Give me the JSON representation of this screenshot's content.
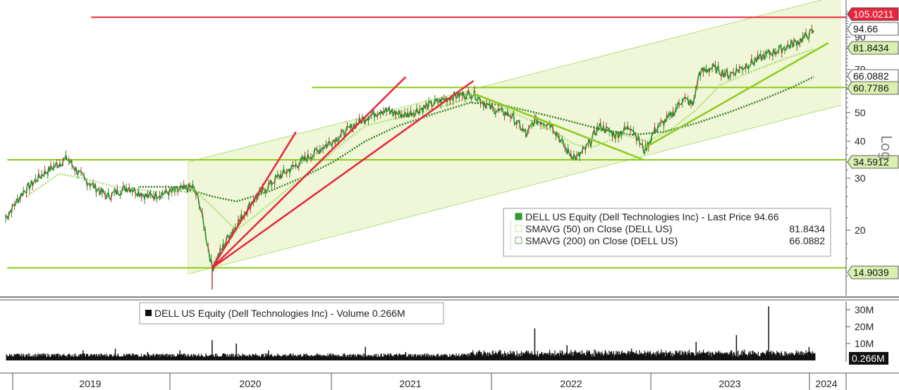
{
  "chart_data": [
    {
      "type": "line",
      "scale": "log",
      "scale_label": "Log",
      "ylim": [
        12,
        115
      ],
      "y_ticks": [
        20,
        30,
        40,
        50,
        60,
        70,
        90
      ],
      "x_labels": [
        "2019",
        "2020",
        "2021",
        "2022",
        "2023",
        "2024"
      ],
      "series": [
        {
          "name": "DELL US Equity (Dell Technologies Inc) - Last Price",
          "last": "94.66",
          "points": [
            [
              2018.92,
              22
            ],
            [
              2019.03,
              27
            ],
            [
              2019.15,
              31
            ],
            [
              2019.3,
              35
            ],
            [
              2019.4,
              30
            ],
            [
              2019.55,
              26
            ],
            [
              2019.68,
              28
            ],
            [
              2019.8,
              26
            ],
            [
              2019.95,
              27
            ],
            [
              2020.08,
              28
            ],
            [
              2020.12,
              25
            ],
            [
              2020.2,
              14.9
            ],
            [
              2020.3,
              19
            ],
            [
              2020.45,
              25
            ],
            [
              2020.6,
              30
            ],
            [
              2020.75,
              34
            ],
            [
              2020.85,
              37
            ],
            [
              2021.0,
              42
            ],
            [
              2021.15,
              48
            ],
            [
              2021.25,
              51
            ],
            [
              2021.4,
              49
            ],
            [
              2021.55,
              53
            ],
            [
              2021.7,
              57
            ],
            [
              2021.82,
              58
            ],
            [
              2021.92,
              52
            ],
            [
              2022.05,
              49
            ],
            [
              2022.15,
              42
            ],
            [
              2022.2,
              47
            ],
            [
              2022.3,
              46
            ],
            [
              2022.4,
              37
            ],
            [
              2022.46,
              35
            ],
            [
              2022.52,
              38
            ],
            [
              2022.6,
              45
            ],
            [
              2022.7,
              42
            ],
            [
              2022.8,
              45
            ],
            [
              2022.88,
              37
            ],
            [
              2022.95,
              44
            ],
            [
              2023.05,
              49
            ],
            [
              2023.12,
              56
            ],
            [
              2023.18,
              53
            ],
            [
              2023.22,
              68
            ],
            [
              2023.3,
              71
            ],
            [
              2023.4,
              67
            ],
            [
              2023.55,
              74
            ],
            [
              2023.65,
              79
            ],
            [
              2023.75,
              83
            ],
            [
              2023.85,
              88
            ],
            [
              2023.93,
              94.66
            ]
          ]
        },
        {
          "name": "SMAVG (50) on Close (DELL US)",
          "value": "81.8434",
          "points": [
            [
              2019.05,
              26
            ],
            [
              2019.25,
              31
            ],
            [
              2019.4,
              30
            ],
            [
              2019.6,
              28
            ],
            [
              2019.85,
              27
            ],
            [
              2020.1,
              27
            ],
            [
              2020.2,
              24
            ],
            [
              2020.35,
              20
            ],
            [
              2020.45,
              22
            ],
            [
              2020.65,
              27
            ],
            [
              2020.85,
              33
            ],
            [
              2021.0,
              39
            ],
            [
              2021.15,
              45
            ],
            [
              2021.35,
              48
            ],
            [
              2021.55,
              51
            ],
            [
              2021.8,
              56
            ],
            [
              2021.95,
              54
            ],
            [
              2022.1,
              49
            ],
            [
              2022.25,
              45
            ],
            [
              2022.45,
              39
            ],
            [
              2022.55,
              38
            ],
            [
              2022.75,
              42
            ],
            [
              2022.9,
              40
            ],
            [
              2023.05,
              44
            ],
            [
              2023.2,
              51
            ],
            [
              2023.35,
              62
            ],
            [
              2023.55,
              69
            ],
            [
              2023.75,
              76
            ],
            [
              2023.93,
              81.8434
            ]
          ]
        },
        {
          "name": "SMAVG (200) on Close (DELL US)",
          "value": "66.0882",
          "points": [
            [
              2019.75,
              28
            ],
            [
              2020.0,
              28
            ],
            [
              2020.2,
              26
            ],
            [
              2020.35,
              25
            ],
            [
              2020.55,
              27
            ],
            [
              2020.75,
              30
            ],
            [
              2020.95,
              34
            ],
            [
              2021.15,
              40
            ],
            [
              2021.35,
              45
            ],
            [
              2021.6,
              50
            ],
            [
              2021.8,
              54
            ],
            [
              2022.0,
              53
            ],
            [
              2022.2,
              50
            ],
            [
              2022.4,
              47
            ],
            [
              2022.6,
              44
            ],
            [
              2022.8,
              42
            ],
            [
              2023.0,
              43
            ],
            [
              2023.2,
              46
            ],
            [
              2023.4,
              50
            ],
            [
              2023.6,
              55
            ],
            [
              2023.8,
              61
            ],
            [
              2023.93,
              66.0882
            ]
          ]
        }
      ],
      "horizontal_levels": [
        {
          "value": "105.0211",
          "color": "#e8253d"
        },
        {
          "value": "60.7786",
          "color": "#8ccc1a"
        },
        {
          "value": "34.5912",
          "color": "#8ccc1a"
        },
        {
          "value": "14.9039",
          "color": "#8ccc1a"
        }
      ],
      "price_tags": [
        {
          "value": "105.0211",
          "bg": "#e8253d",
          "fg": "#ffffff"
        },
        {
          "value": "94.66",
          "bg": "#ffffff",
          "fg": "#111111"
        },
        {
          "value": "81.8434",
          "bg": "#d9f0b0",
          "fg": "#111111"
        },
        {
          "value": "66.0882",
          "bg": "#ffffff",
          "fg": "#111111"
        },
        {
          "value": "60.7786",
          "bg": "#d9f0b0",
          "fg": "#111111"
        },
        {
          "value": "34.5912",
          "bg": "#d9f0b0",
          "fg": "#111111"
        },
        {
          "value": "14.9039",
          "bg": "#d9f0b0",
          "fg": "#111111"
        }
      ],
      "trend_lines": [
        {
          "color": "#e8253d",
          "points": [
            [
              2020.2,
              14.9
            ],
            [
              2020.72,
              43
            ]
          ]
        },
        {
          "color": "#e8253d",
          "points": [
            [
              2020.2,
              14.9
            ],
            [
              2021.4,
              66
            ]
          ]
        },
        {
          "color": "#e8253d",
          "points": [
            [
              2020.2,
              14.9
            ],
            [
              2021.82,
              64
            ]
          ]
        },
        {
          "color": "#8ccc1a",
          "points": [
            [
              2021.82,
              58
            ],
            [
              2022.88,
              34.5
            ]
          ]
        },
        {
          "color": "#8ccc1a",
          "points": [
            [
              2022.88,
              38
            ],
            [
              2024.02,
              86
            ]
          ]
        }
      ],
      "channel": {
        "lower_start": [
          2020.05,
          14.2
        ],
        "lower_end": [
          2024.1,
          53
        ],
        "upper_start": [
          2020.05,
          34
        ],
        "upper_end": [
          2024.1,
          125
        ]
      },
      "legend": {
        "items": [
          {
            "label": "DELL US Equity (Dell Technologies Inc) - Last Price 94.66",
            "value": ""
          },
          {
            "label": "SMAVG (50)  on Close (DELL US)",
            "value": "81.8434"
          },
          {
            "label": "SMAVG (200)  on Close (DELL US)",
            "value": "66.0882"
          }
        ],
        "placement": "bottom-right"
      },
      "colors": {
        "price": "#2c8a2c",
        "sma50": "#a8dc6a",
        "sma200": "#2e7d1e",
        "channel_fill": "#eff7d8",
        "levels": "#8ccc1a",
        "resistance": "#e8253d"
      }
    },
    {
      "type": "bar",
      "title": "DELL US Equity (Dell Technologies Inc) - Volume 0.266M",
      "y_ticks": [
        "30M",
        "20M",
        "10M"
      ],
      "last_tag": "0.266M",
      "ylim": [
        0,
        35
      ],
      "volume_spikes": [
        [
          2019.0,
          3
        ],
        [
          2019.15,
          4
        ],
        [
          2019.4,
          6
        ],
        [
          2019.6,
          7
        ],
        [
          2019.8,
          5
        ],
        [
          2020.0,
          6
        ],
        [
          2020.2,
          12
        ],
        [
          2020.35,
          10
        ],
        [
          2020.55,
          6
        ],
        [
          2021.15,
          8
        ],
        [
          2021.4,
          5
        ],
        [
          2021.85,
          5
        ],
        [
          2022.0,
          4
        ],
        [
          2022.2,
          19
        ],
        [
          2022.4,
          9
        ],
        [
          2022.8,
          7
        ],
        [
          2023.1,
          6
        ],
        [
          2023.2,
          11
        ],
        [
          2023.45,
          15
        ],
        [
          2023.65,
          32
        ],
        [
          2023.9,
          8
        ]
      ],
      "color": "#111111"
    }
  ]
}
